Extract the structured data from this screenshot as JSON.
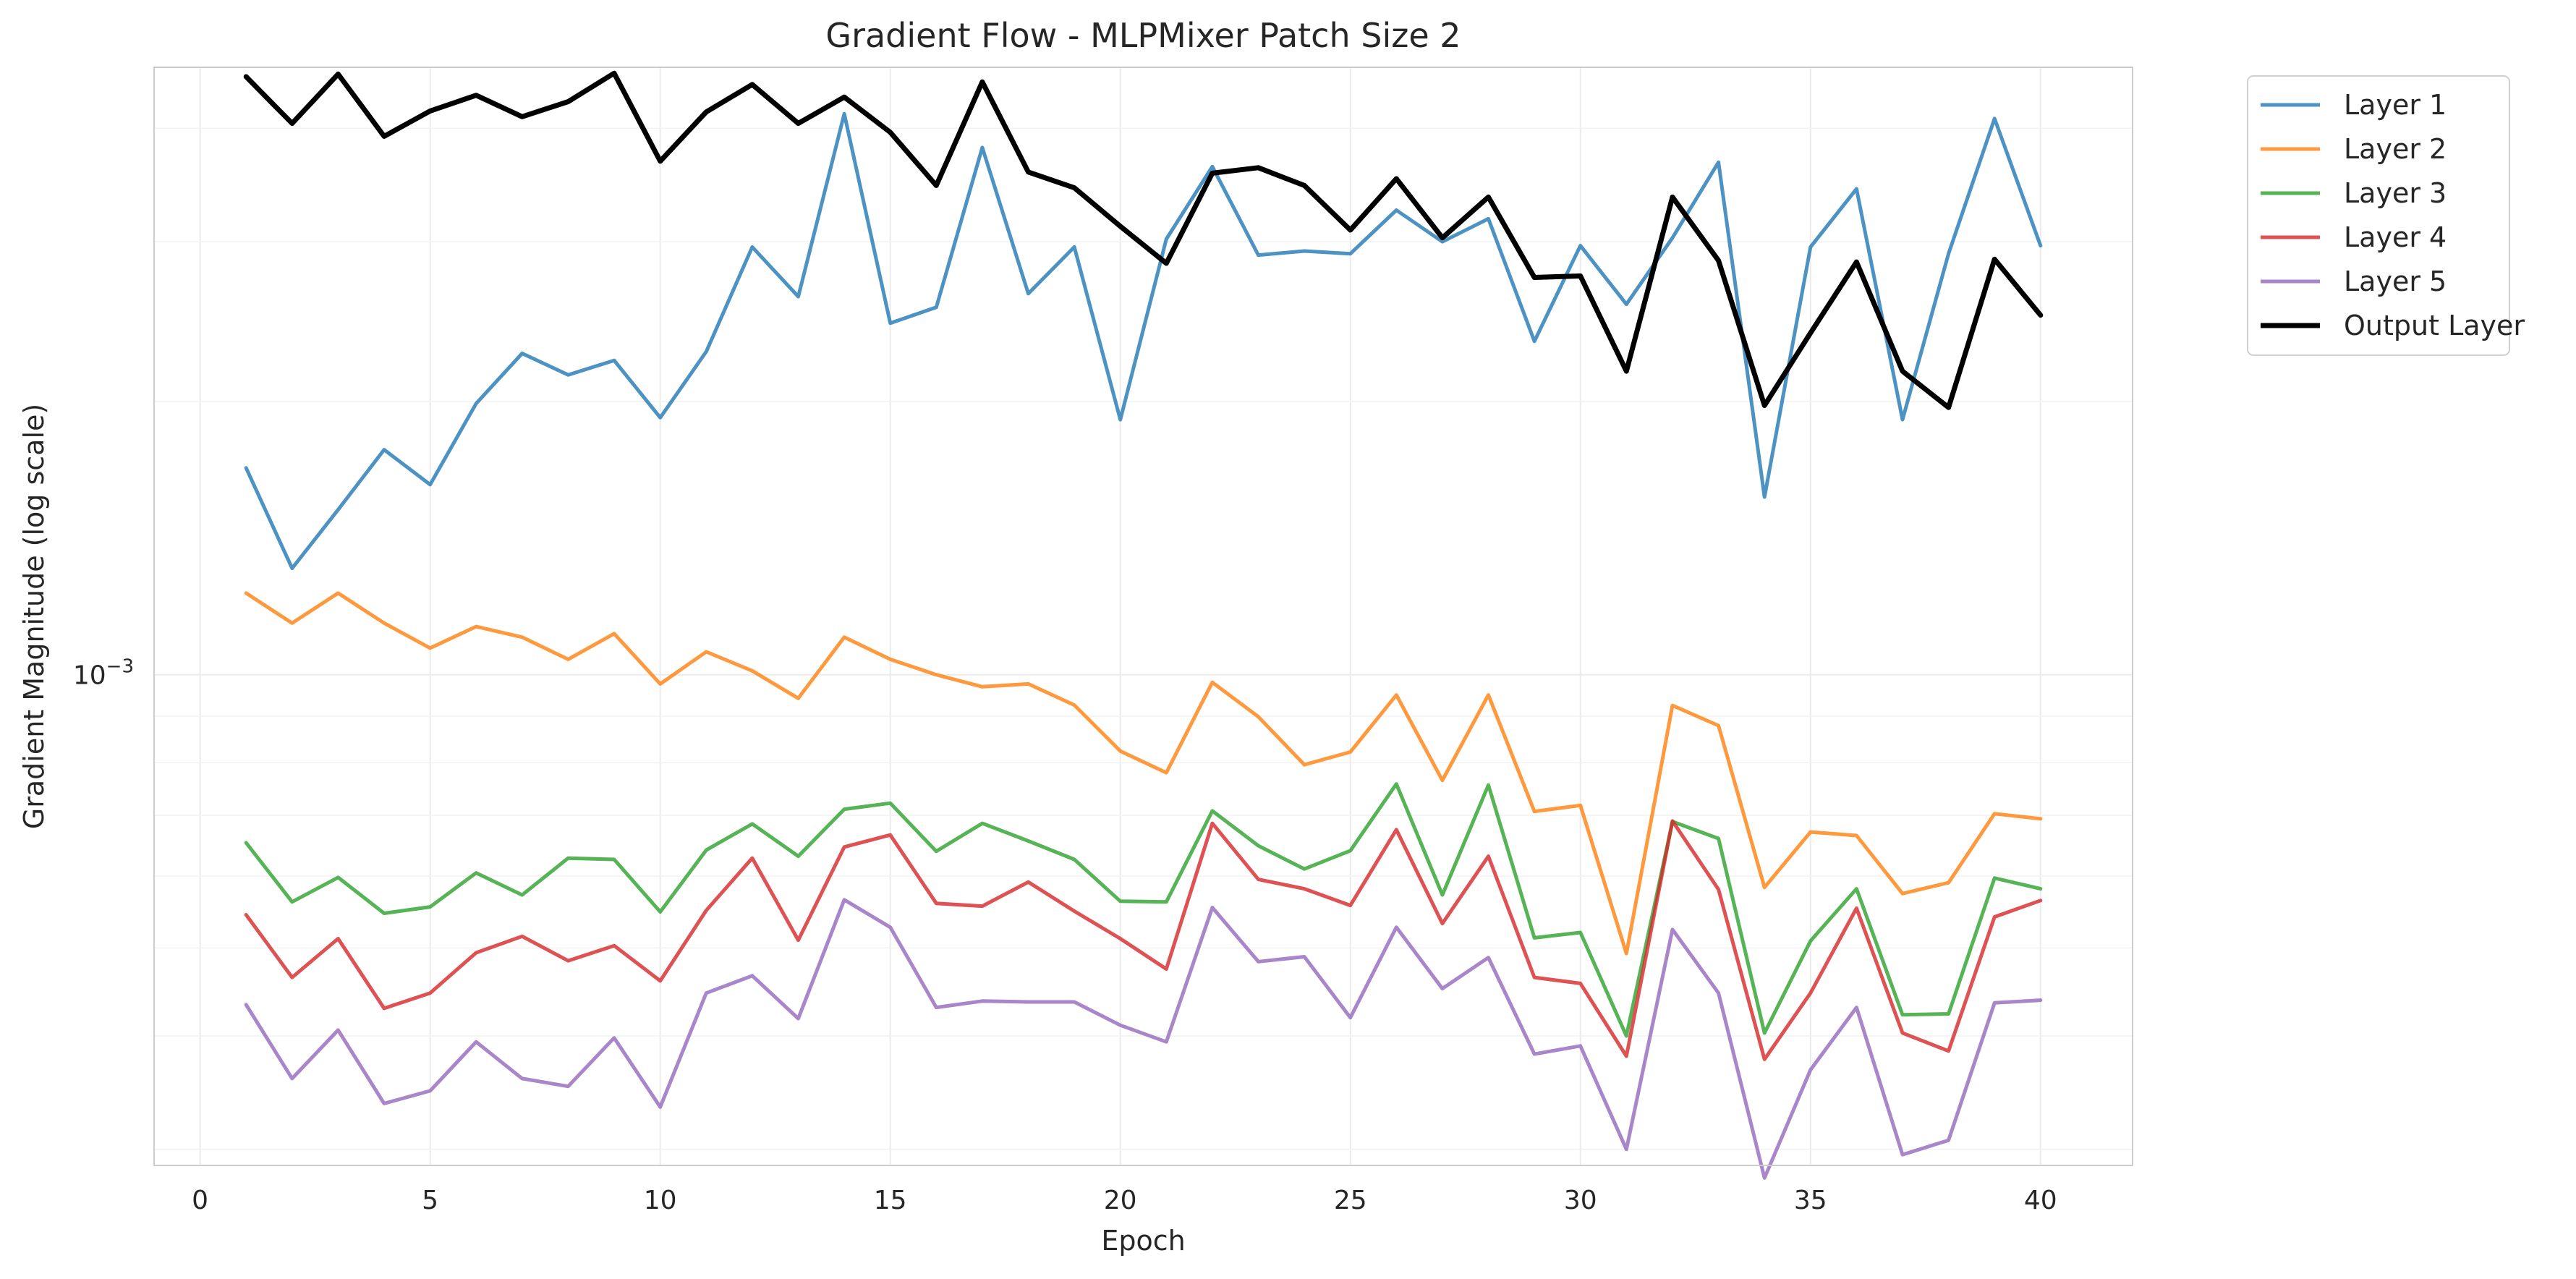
{
  "chart_data": {
    "type": "line",
    "title": "Gradient Flow - MLPMixer Patch Size 2",
    "xlabel": "Epoch",
    "ylabel": "Gradient Magnitude (log scale)",
    "yscale": "log",
    "xlim": [
      -1,
      42
    ],
    "ylim": [
      0.000288,
      0.00467
    ],
    "xticks": [
      0,
      5,
      10,
      15,
      20,
      25,
      30,
      35,
      40
    ],
    "yticks": [
      {
        "value": 0.001,
        "base": "10",
        "exponent": "−3"
      }
    ],
    "grid": true,
    "legend": "outside-top-right",
    "x": [
      1,
      2,
      3,
      4,
      5,
      6,
      7,
      8,
      9,
      10,
      11,
      12,
      13,
      14,
      15,
      16,
      17,
      18,
      19,
      20,
      21,
      22,
      23,
      24,
      25,
      26,
      27,
      28,
      29,
      30,
      31,
      32,
      33,
      34,
      35,
      36,
      37,
      38,
      39,
      40
    ],
    "series": [
      {
        "name": "Layer 1",
        "color": "#1f77b4",
        "values": [
          0.00169,
          0.00131,
          0.00152,
          0.00177,
          0.00162,
          0.00199,
          0.00226,
          0.00214,
          0.00222,
          0.00192,
          0.00227,
          0.00296,
          0.00261,
          0.00415,
          0.00244,
          0.00254,
          0.00381,
          0.00263,
          0.00296,
          0.00191,
          0.00302,
          0.00363,
          0.0029,
          0.00293,
          0.00291,
          0.00325,
          0.003,
          0.00318,
          0.00233,
          0.00297,
          0.00256,
          0.00303,
          0.00367,
          0.00157,
          0.00296,
          0.00343,
          0.00191,
          0.00291,
          0.0041,
          0.00297
        ]
      },
      {
        "name": "Layer 2",
        "color": "#ff7f0e",
        "values": [
          0.00123,
          0.00114,
          0.00123,
          0.00114,
          0.00107,
          0.00113,
          0.0011,
          0.00104,
          0.00111,
          0.000977,
          0.00106,
          0.00101,
          0.000942,
          0.0011,
          0.00104,
          0.001,
          0.00097,
          0.000977,
          0.000926,
          0.000824,
          0.00078,
          0.000981,
          0.000899,
          0.000796,
          0.000822,
          0.00095,
          0.000765,
          0.00095,
          0.000707,
          0.000718,
          0.000493,
          0.000925,
          0.000879,
          0.000583,
          0.000671,
          0.000665,
          0.000574,
          0.00059,
          0.000703,
          0.000694
        ]
      },
      {
        "name": "Layer 3",
        "color": "#2ca02c",
        "values": [
          0.000653,
          0.000562,
          0.000598,
          0.000546,
          0.000555,
          0.000605,
          0.000572,
          0.000628,
          0.000626,
          0.000548,
          0.000641,
          0.000685,
          0.000631,
          0.000711,
          0.000722,
          0.000639,
          0.000686,
          0.000656,
          0.000626,
          0.000563,
          0.000562,
          0.000708,
          0.000648,
          0.000611,
          0.00064,
          0.000758,
          0.000572,
          0.000756,
          0.000513,
          0.00052,
          0.0004,
          0.000689,
          0.00066,
          0.000403,
          0.000509,
          0.000581,
          0.000422,
          0.000423,
          0.000597,
          0.000581
        ]
      },
      {
        "name": "Layer 4",
        "color": "#d62728",
        "values": [
          0.000544,
          0.000464,
          0.000512,
          0.000429,
          0.000446,
          0.000494,
          0.000515,
          0.000484,
          0.000503,
          0.00046,
          0.00055,
          0.000628,
          0.00051,
          0.000646,
          0.000666,
          0.00056,
          0.000556,
          0.000591,
          0.000549,
          0.000512,
          0.000474,
          0.000686,
          0.000595,
          0.000581,
          0.000557,
          0.000675,
          0.000532,
          0.000631,
          0.000464,
          0.000457,
          0.00038,
          0.00069,
          0.00058,
          0.000377,
          0.000446,
          0.000553,
          0.000403,
          0.000385,
          0.000541,
          0.000564
        ]
      },
      {
        "name": "Layer 5",
        "color": "#9467bd",
        "values": [
          0.000433,
          0.000359,
          0.000406,
          0.000337,
          0.000348,
          0.000394,
          0.000359,
          0.000352,
          0.000398,
          0.000334,
          0.000446,
          0.000466,
          0.000418,
          0.000565,
          0.000527,
          0.00043,
          0.000437,
          0.000436,
          0.000436,
          0.000411,
          0.000394,
          0.000554,
          0.000483,
          0.000489,
          0.000419,
          0.000527,
          0.000451,
          0.000488,
          0.000382,
          0.00039,
          0.0003,
          0.000524,
          0.000446,
          0.000279,
          0.000367,
          0.00043,
          0.000296,
          0.000307,
          0.000435,
          0.000438
        ]
      },
      {
        "name": "Output Layer",
        "color": "#000000",
        "values": [
          0.00456,
          0.00405,
          0.00459,
          0.00392,
          0.00418,
          0.00435,
          0.00412,
          0.00428,
          0.0046,
          0.00368,
          0.00417,
          0.00447,
          0.00405,
          0.00433,
          0.00396,
          0.00346,
          0.0045,
          0.00358,
          0.00344,
          0.00312,
          0.00284,
          0.00357,
          0.00362,
          0.00346,
          0.00309,
          0.00352,
          0.00303,
          0.00336,
          0.00274,
          0.00275,
          0.00216,
          0.00336,
          0.00286,
          0.00198,
          0.00238,
          0.00285,
          0.00216,
          0.00197,
          0.00287,
          0.00249
        ]
      }
    ]
  }
}
